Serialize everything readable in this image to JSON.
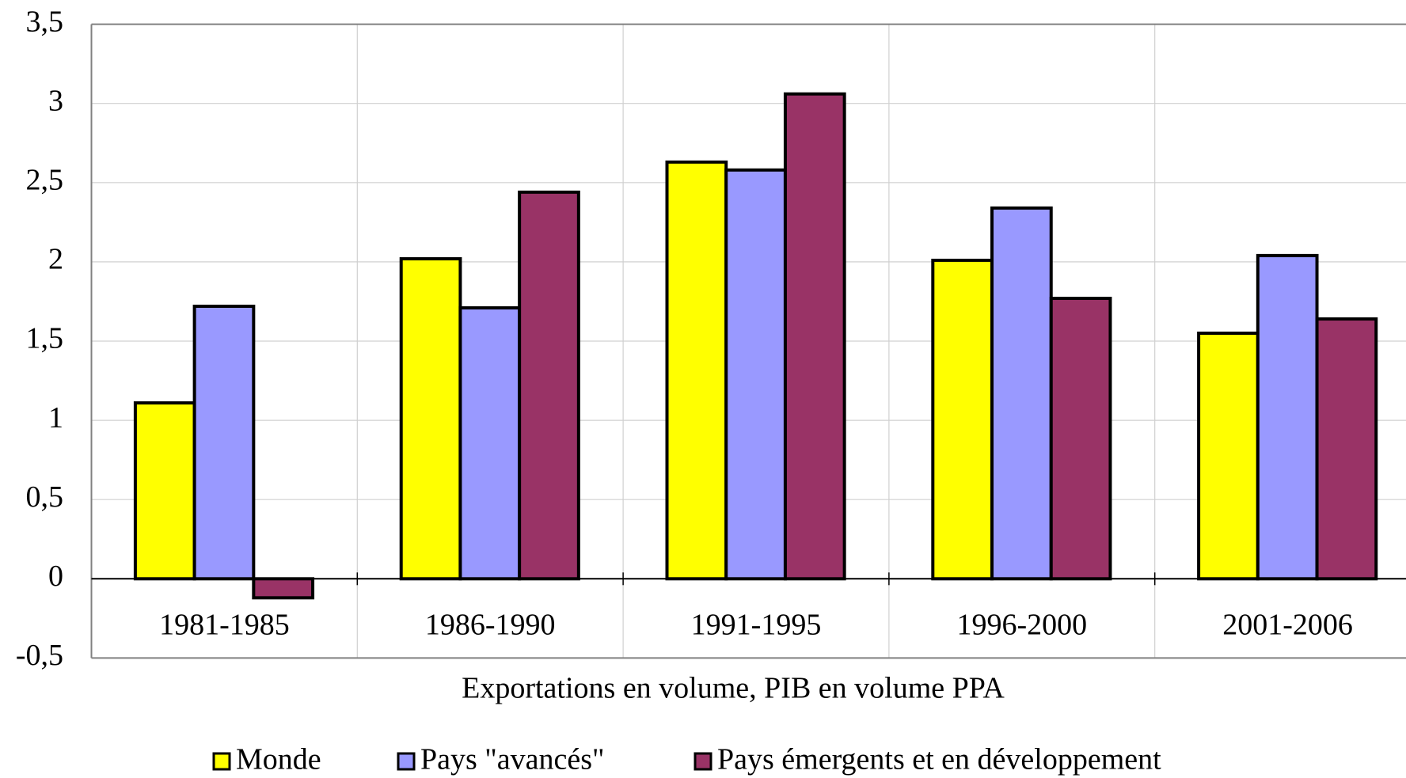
{
  "chart_data": {
    "type": "bar",
    "xlabel": "Exportations en volume, PIB en volume PPA",
    "categories": [
      "1981-1985",
      "1986-1990",
      "1991-1995",
      "1996-2000",
      "2001-2006"
    ],
    "series": [
      {
        "name": "Monde",
        "color": "#ffff00",
        "values": [
          1.11,
          2.02,
          2.63,
          2.01,
          1.55
        ]
      },
      {
        "name": "Pays \"avancés\"",
        "color": "#9999ff",
        "values": [
          1.72,
          1.71,
          2.58,
          2.34,
          2.04
        ]
      },
      {
        "name": "Pays émergents et en développement",
        "color": "#993366",
        "values": [
          -0.12,
          2.44,
          3.06,
          1.77,
          1.64
        ]
      }
    ],
    "ylim": [
      -0.5,
      3.5
    ],
    "yticks": [
      {
        "value": -0.5,
        "label": "-0,5"
      },
      0,
      {
        "value": 0.5,
        "label": "0,5"
      },
      1,
      {
        "value": 1.5,
        "label": "1,5"
      },
      2,
      {
        "value": 2.5,
        "label": "2,5"
      },
      3,
      {
        "value": 3.5,
        "label": "3,5"
      }
    ],
    "grid": true,
    "legend": "bottom"
  }
}
